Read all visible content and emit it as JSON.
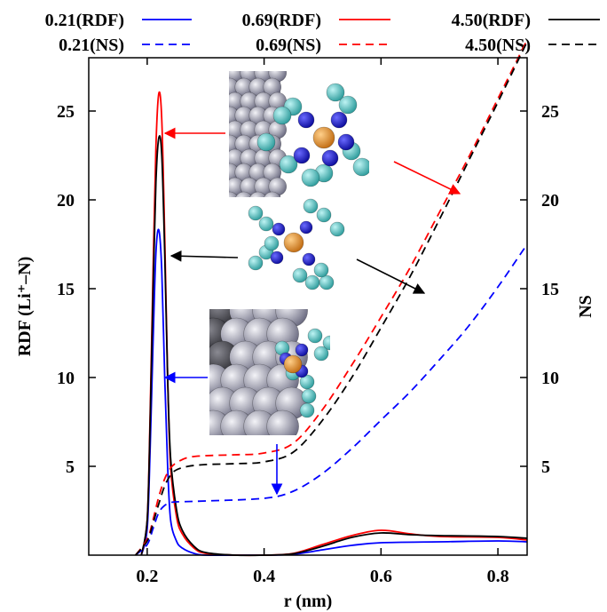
{
  "chart_data": {
    "type": "line",
    "xlabel": "r (nm)",
    "ylabel_left": "RDF (Li⁺–N)",
    "ylabel_right": "NS",
    "xlim": [
      0.1,
      0.85
    ],
    "ylim": [
      0,
      28
    ],
    "xticks": [
      0.2,
      0.4,
      0.6,
      0.8
    ],
    "yticks": [
      5,
      10,
      15,
      20,
      25
    ],
    "grid": false,
    "legend_position": "top",
    "colors": {
      "0.21": "#0000ff",
      "0.69": "#ff0000",
      "4.50": "#000000"
    },
    "series": [
      {
        "name": "0.21(RDF)",
        "color": "#0000ff",
        "dash": false,
        "x": [
          0.19,
          0.2,
          0.205,
          0.21,
          0.215,
          0.22,
          0.225,
          0.23,
          0.235,
          0.24,
          0.25,
          0.26,
          0.28,
          0.3,
          0.35,
          0.4,
          0.45,
          0.5,
          0.55,
          0.6,
          0.7,
          0.8,
          0.85
        ],
        "y": [
          0,
          1.5,
          6,
          12,
          17,
          18.3,
          16,
          10,
          5,
          2,
          0.8,
          0.4,
          0.1,
          0,
          0,
          0,
          0.05,
          0.3,
          0.55,
          0.7,
          0.75,
          0.8,
          0.75
        ]
      },
      {
        "name": "0.69(RDF)",
        "color": "#ff0000",
        "dash": false,
        "x": [
          0.19,
          0.2,
          0.205,
          0.21,
          0.215,
          0.22,
          0.225,
          0.23,
          0.235,
          0.24,
          0.25,
          0.26,
          0.28,
          0.3,
          0.35,
          0.4,
          0.45,
          0.5,
          0.55,
          0.6,
          0.65,
          0.7,
          0.8,
          0.85
        ],
        "y": [
          0,
          2,
          8,
          16,
          23,
          26,
          24.5,
          18,
          10,
          5,
          2.2,
          1.2,
          0.4,
          0.1,
          0,
          0,
          0.1,
          0.6,
          1.1,
          1.4,
          1.2,
          1.05,
          1.0,
          0.85
        ]
      },
      {
        "name": "4.50(RDF)",
        "color": "#000000",
        "dash": false,
        "x": [
          0.19,
          0.2,
          0.205,
          0.21,
          0.215,
          0.22,
          0.225,
          0.23,
          0.235,
          0.24,
          0.25,
          0.26,
          0.28,
          0.3,
          0.35,
          0.4,
          0.45,
          0.5,
          0.55,
          0.6,
          0.65,
          0.7,
          0.8,
          0.85
        ],
        "y": [
          0,
          2,
          7.5,
          15,
          21,
          23.5,
          22.5,
          17,
          10,
          5.5,
          2.6,
          1.4,
          0.5,
          0.15,
          0,
          0,
          0.08,
          0.5,
          1.0,
          1.25,
          1.15,
          1.1,
          1.05,
          0.95
        ]
      },
      {
        "name": "0.21(NS)",
        "color": "#0000ff",
        "dash": true,
        "x": [
          0.18,
          0.2,
          0.21,
          0.22,
          0.23,
          0.24,
          0.25,
          0.3,
          0.4,
          0.45,
          0.5,
          0.55,
          0.6,
          0.65,
          0.7,
          0.75,
          0.8,
          0.85
        ],
        "y": [
          0,
          0.6,
          1.5,
          2.4,
          2.8,
          2.95,
          3.0,
          3.05,
          3.2,
          3.6,
          4.6,
          6.0,
          7.6,
          9.2,
          11.0,
          12.9,
          15.1,
          17.5
        ]
      },
      {
        "name": "0.69(NS)",
        "color": "#ff0000",
        "dash": true,
        "x": [
          0.18,
          0.2,
          0.21,
          0.22,
          0.23,
          0.24,
          0.25,
          0.27,
          0.3,
          0.35,
          0.4,
          0.45,
          0.5,
          0.55,
          0.6,
          0.65,
          0.7,
          0.75,
          0.8,
          0.85
        ],
        "y": [
          0,
          0.9,
          2.0,
          3.3,
          4.3,
          4.9,
          5.2,
          5.5,
          5.6,
          5.65,
          5.75,
          6.3,
          8.2,
          10.7,
          13.4,
          16.2,
          19.3,
          22.4,
          25.7,
          29.0
        ]
      },
      {
        "name": "4.50(NS)",
        "color": "#000000",
        "dash": true,
        "x": [
          0.18,
          0.2,
          0.21,
          0.22,
          0.23,
          0.24,
          0.25,
          0.27,
          0.3,
          0.35,
          0.4,
          0.45,
          0.5,
          0.55,
          0.6,
          0.65,
          0.7,
          0.75,
          0.8,
          0.85
        ],
        "y": [
          0,
          0.8,
          1.8,
          2.9,
          3.9,
          4.5,
          4.8,
          5.0,
          5.1,
          5.15,
          5.25,
          5.8,
          7.6,
          10.0,
          12.8,
          15.7,
          18.9,
          22.2,
          25.5,
          28.9
        ]
      }
    ],
    "insets": [
      {
        "name": "surface-cluster-top",
        "central_color": "#e0801a",
        "n_color": "#1a1acc",
        "c_color": "#3ab8b8"
      },
      {
        "name": "free-cluster-middle",
        "central_color": "#e0801a",
        "n_color": "#1a1acc",
        "c_color": "#3ab8b8"
      },
      {
        "name": "surface-cluster-bottom",
        "central_color": "#e0801a",
        "n_color": "#1a1acc",
        "c_color": "#3ab8b8"
      }
    ]
  }
}
